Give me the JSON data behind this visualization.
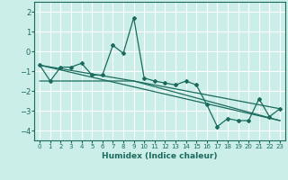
{
  "xlabel": "Humidex (Indice chaleur)",
  "bg_color": "#cceee8",
  "grid_color": "#ffffff",
  "line_color": "#1a6b5e",
  "xlim": [
    -0.5,
    23.5
  ],
  "ylim": [
    -4.5,
    2.5
  ],
  "xticks": [
    0,
    1,
    2,
    3,
    4,
    5,
    6,
    7,
    8,
    9,
    10,
    11,
    12,
    13,
    14,
    15,
    16,
    17,
    18,
    19,
    20,
    21,
    22,
    23
  ],
  "yticks": [
    -4,
    -3,
    -2,
    -1,
    0,
    1,
    2
  ],
  "series": [
    [
      0,
      -0.7
    ],
    [
      1,
      -1.5
    ],
    [
      2,
      -0.8
    ],
    [
      3,
      -0.8
    ],
    [
      4,
      -0.6
    ],
    [
      5,
      -1.2
    ],
    [
      6,
      -1.2
    ],
    [
      7,
      0.3
    ],
    [
      8,
      -0.1
    ],
    [
      9,
      1.7
    ],
    [
      10,
      -1.35
    ],
    [
      11,
      -1.5
    ],
    [
      12,
      -1.6
    ],
    [
      13,
      -1.7
    ],
    [
      14,
      -1.5
    ],
    [
      15,
      -1.7
    ],
    [
      16,
      -2.7
    ],
    [
      17,
      -3.8
    ],
    [
      18,
      -3.4
    ],
    [
      19,
      -3.5
    ],
    [
      20,
      -3.5
    ],
    [
      21,
      -2.4
    ],
    [
      22,
      -3.3
    ],
    [
      23,
      -2.9
    ]
  ],
  "line2": [
    [
      0,
      -0.7
    ],
    [
      9,
      -1.5
    ],
    [
      23,
      -2.9
    ]
  ],
  "line3": [
    [
      0,
      -1.5
    ],
    [
      9,
      -1.5
    ],
    [
      23,
      -3.5
    ]
  ],
  "line4": [
    [
      0,
      -0.7
    ],
    [
      23,
      -3.5
    ]
  ]
}
